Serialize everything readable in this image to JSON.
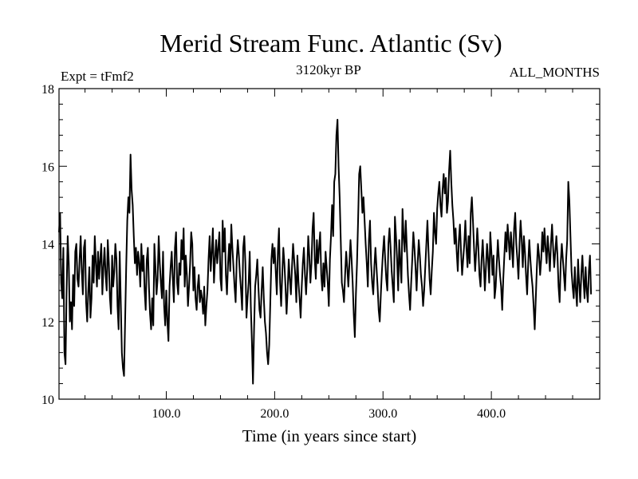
{
  "chart_data": {
    "type": "line",
    "title": "Merid Stream Func. Atlantic (Sv)",
    "subtitle_left": "Expt = tFmf2",
    "subtitle_center": "3120kyr BP",
    "subtitle_right": "ALL_MONTHS",
    "xlabel": "Time (in years since start)",
    "ylabel": "",
    "xlim": [
      1,
      500
    ],
    "ylim": [
      10,
      18
    ],
    "x_ticks": [
      100,
      200,
      300,
      400
    ],
    "x_tick_labels": [
      "100.0",
      "200.0",
      "300.0",
      "400.0"
    ],
    "y_ticks": [
      10,
      12,
      14,
      16,
      18
    ],
    "y_tick_labels": [
      "10",
      "12",
      "14",
      "16",
      "18"
    ],
    "series": [
      {
        "name": "Merid Stream Func. Atlantic",
        "x_start": 1,
        "x_step": 1,
        "values": [
          14.3,
          14.8,
          13.0,
          12.6,
          13.9,
          11.2,
          10.9,
          12.8,
          14.2,
          13.5,
          12.0,
          12.5,
          11.8,
          13.2,
          12.4,
          13.8,
          14.0,
          13.1,
          12.9,
          13.6,
          14.2,
          13.3,
          12.7,
          13.9,
          14.1,
          12.5,
          12.0,
          12.8,
          13.4,
          12.1,
          12.6,
          13.7,
          13.0,
          14.2,
          13.5,
          12.9,
          13.8,
          13.1,
          13.6,
          14.0,
          12.7,
          13.4,
          13.9,
          13.2,
          12.8,
          14.1,
          13.5,
          12.6,
          12.2,
          13.7,
          12.9,
          13.3,
          14.0,
          13.6,
          12.4,
          11.8,
          13.8,
          12.5,
          11.2,
          10.8,
          10.6,
          12.0,
          13.4,
          14.6,
          15.2,
          14.8,
          16.3,
          15.4,
          15.0,
          14.2,
          13.5,
          13.9,
          13.2,
          13.8,
          13.5,
          12.9,
          14.0,
          13.3,
          13.7,
          12.8,
          12.3,
          13.6,
          13.9,
          12.9,
          12.2,
          11.8,
          12.6,
          11.9,
          14.0,
          13.4,
          12.7,
          13.1,
          14.2,
          13.5,
          13.0,
          12.6,
          13.8,
          12.4,
          11.9,
          12.8,
          12.0,
          11.5,
          12.9,
          13.4,
          13.8,
          13.1,
          12.5,
          13.9,
          14.3,
          13.0,
          12.7,
          13.5,
          13.2,
          14.1,
          13.6,
          14.4,
          12.9,
          13.7,
          13.2,
          12.4,
          12.9,
          13.5,
          14.3,
          14.0,
          12.8,
          13.4,
          12.6,
          12.3,
          12.9,
          13.2,
          12.5,
          12.8,
          12.6,
          12.2,
          12.9,
          11.9,
          12.4,
          12.8,
          13.6,
          14.2,
          13.3,
          13.8,
          14.4,
          13.0,
          13.6,
          14.1,
          13.5,
          13.9,
          14.3,
          13.1,
          12.8,
          14.6,
          13.8,
          14.4,
          13.2,
          12.7,
          13.5,
          14.0,
          13.3,
          14.5,
          13.9,
          13.4,
          12.9,
          12.5,
          13.6,
          14.1,
          13.7,
          13.2,
          12.8,
          12.3,
          13.9,
          14.2,
          13.5,
          12.1,
          12.6,
          13.0,
          13.8,
          12.4,
          11.5,
          10.4,
          11.8,
          12.9,
          13.2,
          13.6,
          12.9,
          12.3,
          12.1,
          12.8,
          13.4,
          12.6,
          12.0,
          11.7,
          11.2,
          10.9,
          11.4,
          12.5,
          13.6,
          14.0,
          13.5,
          13.9,
          13.3,
          12.7,
          13.8,
          14.4,
          13.0,
          12.4,
          13.2,
          13.9,
          13.5,
          12.9,
          12.2,
          12.8,
          13.6,
          13.1,
          12.7,
          13.4,
          14.0,
          13.6,
          13.2,
          12.5,
          13.7,
          13.0,
          12.6,
          12.1,
          12.9,
          13.5,
          13.9,
          13.2,
          12.7,
          13.3,
          14.2,
          13.7,
          13.0,
          13.5,
          14.4,
          14.8,
          13.6,
          13.1,
          14.1,
          13.5,
          13.9,
          14.3,
          13.2,
          12.8,
          13.5,
          12.9,
          13.8,
          13.4,
          13.0,
          12.4,
          13.6,
          14.2,
          15.0,
          14.2,
          15.6,
          15.8,
          16.8,
          17.2,
          16.0,
          15.2,
          14.1,
          13.0,
          12.8,
          12.5,
          13.2,
          13.8,
          13.4,
          12.9,
          13.5,
          14.1,
          13.6,
          13.0,
          12.2,
          11.6,
          12.7,
          13.5,
          14.6,
          15.8,
          16.0,
          15.4,
          14.8,
          15.2,
          14.6,
          14.0,
          13.5,
          12.9,
          14.1,
          14.6,
          13.5,
          13.0,
          12.7,
          13.4,
          13.9,
          13.4,
          12.9,
          12.3,
          12.0,
          12.7,
          13.3,
          13.8,
          14.2,
          13.6,
          13.1,
          12.8,
          14.0,
          14.4,
          13.9,
          13.3,
          12.9,
          12.5,
          14.7,
          14.2,
          13.6,
          12.8,
          14.1,
          13.5,
          13.0,
          14.9,
          14.2,
          13.8,
          14.6,
          13.9,
          13.2,
          12.7,
          12.3,
          13.0,
          13.6,
          14.3,
          13.9,
          13.4,
          12.8,
          13.5,
          14.1,
          13.7,
          13.2,
          12.9,
          12.4,
          12.8,
          13.4,
          14.0,
          14.6,
          13.8,
          13.1,
          12.7,
          13.3,
          13.8,
          14.8,
          14.3,
          14.0,
          14.9,
          15.3,
          15.6,
          15.0,
          14.7,
          15.4,
          15.8,
          15.3,
          15.7,
          14.8,
          15.1,
          15.9,
          16.4,
          15.6,
          15.0,
          14.6,
          14.0,
          14.4,
          13.8,
          13.3,
          14.1,
          14.5,
          13.8,
          13.2,
          13.6,
          14.0,
          14.6,
          13.9,
          13.4,
          14.2,
          13.5,
          14.8,
          15.2,
          14.6,
          13.9,
          13.3,
          13.8,
          14.4,
          13.9,
          13.2,
          12.9,
          13.6,
          14.1,
          13.5,
          12.8,
          13.4,
          14.0,
          13.6,
          13.0,
          14.3,
          13.8,
          13.2,
          13.7,
          12.6,
          12.9,
          13.5,
          14.1,
          13.6,
          13.2,
          12.9,
          12.3,
          13.1,
          13.7,
          14.3,
          13.8,
          14.5,
          14.1,
          13.6,
          14.3,
          13.9,
          13.4,
          14.4,
          14.8,
          14.0,
          13.6,
          13.1,
          14.0,
          14.6,
          14.1,
          13.4,
          14.2,
          13.8,
          13.2,
          12.7,
          13.5,
          14.1,
          13.6,
          13.2,
          12.9,
          12.4,
          11.8,
          12.6,
          13.4,
          14.0,
          13.7,
          13.2,
          13.6,
          14.3,
          13.8,
          14.4,
          13.9,
          13.5,
          14.2,
          13.8,
          13.3,
          14.0,
          14.5,
          13.9,
          13.4,
          13.8,
          14.2,
          13.7,
          12.9,
          12.5,
          13.5,
          14.0,
          13.6,
          13.2,
          12.8,
          13.6,
          14.1,
          15.6,
          15.1,
          14.2,
          13.3,
          12.9,
          12.6,
          13.4,
          12.8,
          12.4,
          13.6,
          13.0,
          12.5,
          13.2,
          13.7,
          13.1,
          12.6,
          13.4,
          12.8,
          12.5,
          13.3,
          13.7,
          12.7
        ]
      }
    ]
  }
}
